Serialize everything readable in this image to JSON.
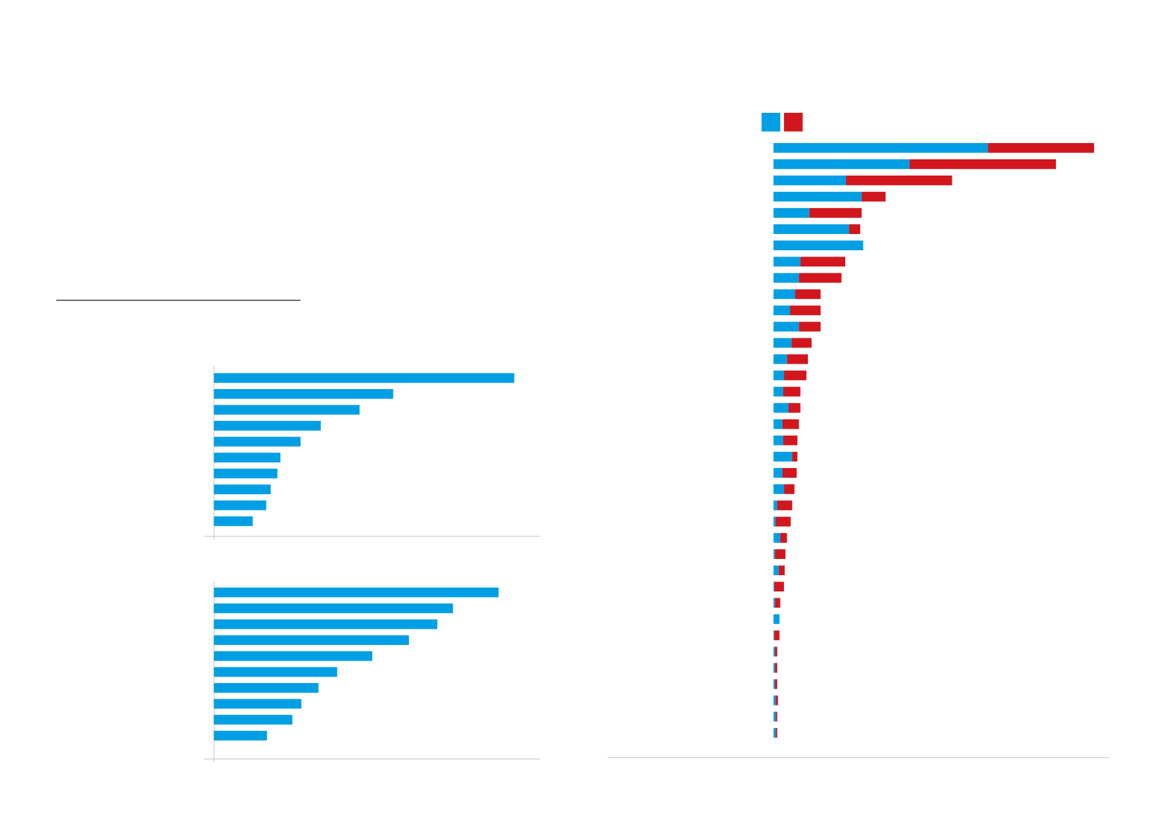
{
  "chart_data": [
    {
      "type": "bar",
      "orientation": "horizontal",
      "categories": [
        null,
        null,
        null,
        null,
        null,
        null,
        null,
        null,
        null,
        null
      ],
      "series": [
        {
          "color": "#009fe3",
          "values": [
            402,
            240,
            195,
            143,
            116,
            89,
            85,
            76,
            70,
            52
          ]
        }
      ],
      "xlim": [
        0,
        437
      ]
    },
    {
      "type": "bar",
      "orientation": "horizontal",
      "categories": [
        null,
        null,
        null,
        null,
        null,
        null,
        null,
        null,
        null,
        null
      ],
      "series": [
        {
          "color": "#009fe3",
          "values": [
            381,
            320,
            299,
            261,
            212,
            165,
            140,
            117,
            105,
            71
          ]
        }
      ],
      "xlim": [
        0,
        437
      ]
    },
    {
      "type": "bar",
      "orientation": "horizontal",
      "stacked": true,
      "legend": "top-left",
      "categories": [
        null,
        null,
        null,
        null,
        null,
        null,
        null,
        null,
        null,
        null,
        null,
        null,
        null,
        null,
        null,
        null,
        null,
        null,
        null,
        null,
        null,
        null,
        null,
        null,
        null,
        null,
        null,
        null,
        null,
        null,
        null,
        null,
        null,
        null,
        null,
        null,
        null
      ],
      "series": [
        {
          "color": "#009fe3",
          "values": [
            287,
            182,
            97,
            118,
            48,
            101,
            120,
            36,
            34,
            29,
            22,
            34,
            24,
            18,
            14,
            13,
            20,
            12,
            13,
            25,
            12,
            14,
            5,
            3,
            9,
            2,
            7,
            1,
            2,
            8,
            1,
            2,
            2,
            2,
            3,
            3,
            3
          ]
        },
        {
          "color": "#d2161d",
          "values": [
            142,
            196,
            142,
            32,
            70,
            15,
            0,
            60,
            57,
            34,
            41,
            29,
            27,
            28,
            30,
            23,
            16,
            22,
            19,
            7,
            19,
            14,
            20,
            20,
            9,
            14,
            8,
            13,
            7,
            0,
            7,
            3,
            3,
            3,
            3,
            2,
            2
          ]
        }
      ],
      "xlim": [
        0,
        449
      ]
    }
  ]
}
